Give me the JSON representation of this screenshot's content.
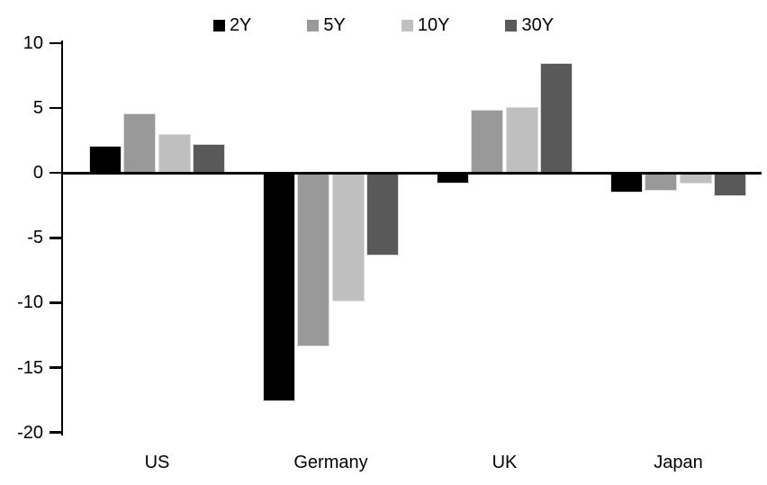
{
  "chart_data": {
    "type": "bar",
    "title": "",
    "xlabel": "",
    "ylabel": "",
    "categories": [
      "US",
      "Germany",
      "UK",
      "Japan"
    ],
    "series": [
      {
        "name": "2Y",
        "color": "#000000",
        "values": [
          2.1,
          -17.6,
          -0.8,
          -1.5
        ]
      },
      {
        "name": "5Y",
        "color": "#999999",
        "values": [
          4.6,
          -13.4,
          4.9,
          -1.4
        ]
      },
      {
        "name": "10Y",
        "color": "#bfbfbf",
        "values": [
          3.0,
          -9.9,
          5.1,
          -0.8
        ]
      },
      {
        "name": "30Y",
        "color": "#595959",
        "values": [
          2.2,
          -6.4,
          8.5,
          -1.8
        ]
      }
    ],
    "ylim": [
      -20,
      10
    ],
    "yticks": [
      10,
      5,
      0,
      -5,
      -10,
      -15,
      -20
    ],
    "grid": false,
    "legend_position": "top",
    "axis_color": "#000000",
    "background_color": "#ffffff"
  }
}
